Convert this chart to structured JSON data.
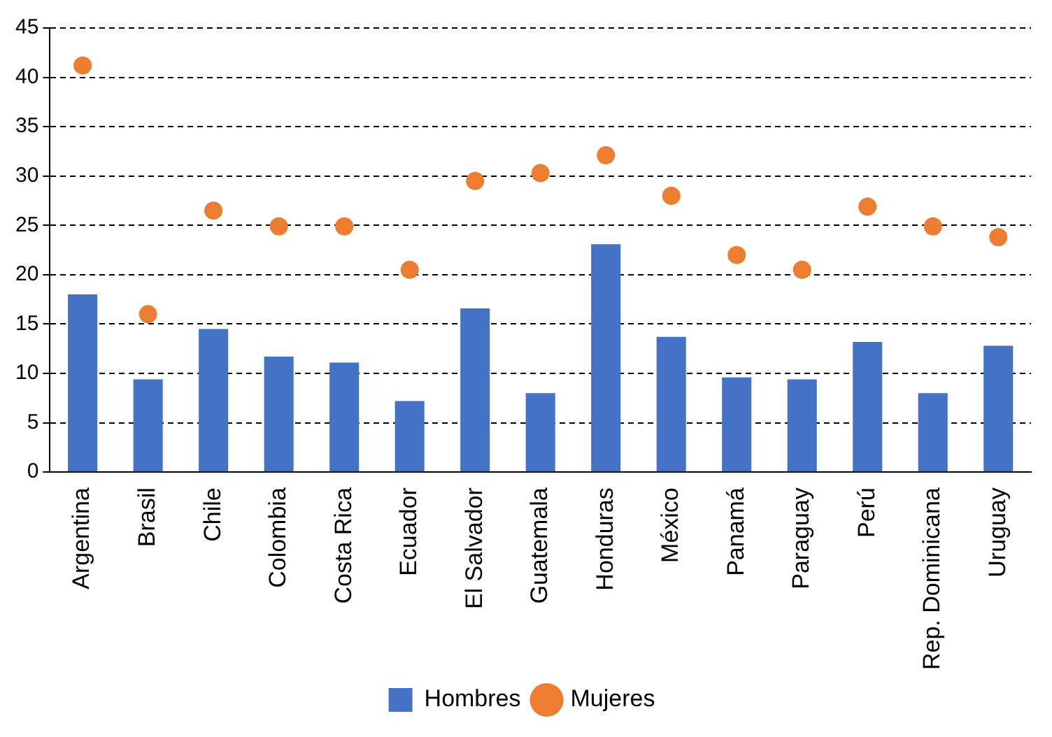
{
  "chart_data": {
    "type": "bar",
    "categories": [
      "Argentina",
      "Brasil",
      "Chile",
      "Colombia",
      "Costa Rica",
      "Ecuador",
      "El Salvador",
      "Guatemala",
      "Honduras",
      "México",
      "Panamá",
      "Paraguay",
      "Perú",
      "Rep. Dominicana",
      "Uruguay"
    ],
    "series": [
      {
        "name": "Hombres",
        "color": "#4472c4",
        "values": [
          18,
          9.4,
          14.5,
          11.7,
          11.1,
          7.2,
          16.6,
          8,
          23.1,
          13.7,
          9.6,
          9.4,
          13.2,
          8,
          12.8
        ]
      },
      {
        "name": "Mujeres",
        "type": "scatter",
        "color": "#ed7d31",
        "marker": "circle",
        "values": [
          41.2,
          16,
          26.5,
          24.9,
          24.9,
          20.5,
          29.5,
          30.3,
          32.1,
          28,
          22,
          20.5,
          26.9,
          24.9,
          23.8
        ]
      }
    ],
    "ylim": [
      0,
      45
    ],
    "yticks": [
      0,
      5,
      10,
      15,
      20,
      25,
      30,
      35,
      40,
      45
    ],
    "grid": "y",
    "legend": "bottom"
  }
}
